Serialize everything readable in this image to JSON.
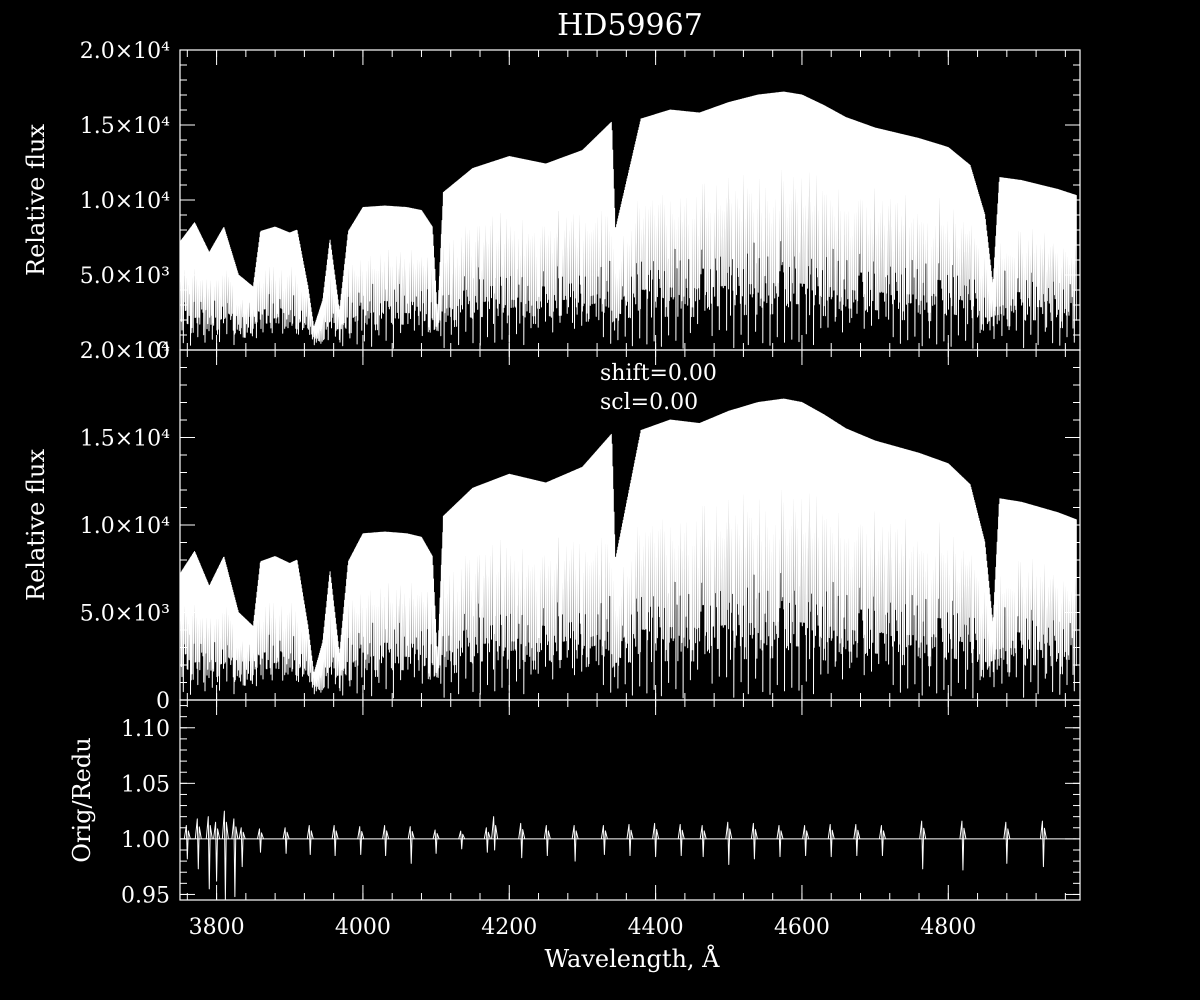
{
  "chart_data": {
    "type": "line",
    "title": "HD59967",
    "xlabel": "Wavelength, Å",
    "xlim": [
      3750,
      4980
    ],
    "x_ticks": [
      3800,
      4000,
      4200,
      4400,
      4600,
      4800
    ],
    "x_tick_labels": [
      "3800",
      "4000",
      "4200",
      "4400",
      "4600",
      "4800"
    ],
    "grid": false,
    "panels": [
      {
        "id": "original",
        "ylabel": "Relative flux",
        "ylim": [
          0,
          20000
        ],
        "y_ticks": [
          0,
          5000,
          10000,
          15000,
          20000
        ],
        "y_tick_labels": [
          "0",
          "5.0×10³",
          "1.0×10⁴",
          "1.5×10⁴",
          "2.0×10⁴"
        ],
        "annotations": [],
        "series": [
          {
            "continuum": {
              "x": [
                3750,
                3770,
                3790,
                3810,
                3830,
                3850,
                3860,
                3880,
                3900,
                3910,
                3925,
                3933,
                3945,
                3955,
                3968,
                3980,
                4000,
                4030,
                4060,
                4080,
                4095,
                4102,
                4110,
                4150,
                4200,
                4250,
                4300,
                4340,
                4345,
                4380,
                4420,
                4460,
                4500,
                4540,
                4575,
                4600,
                4630,
                4660,
                4700,
                4760,
                4800,
                4830,
                4850,
                4861,
                4870,
                4900,
                4950,
                4975
              ],
              "y": [
                7200,
                8500,
                6500,
                8200,
                5000,
                4200,
                7900,
                8200,
                7800,
                8000,
                4200,
                1500,
                3300,
                7400,
                2600,
                7900,
                9500,
                9600,
                9500,
                9300,
                8200,
                2200,
                10500,
                12100,
                12900,
                12400,
                13300,
                15200,
                8000,
                15400,
                16000,
                15800,
                16500,
                17000,
                17200,
                17000,
                16300,
                15500,
                14800,
                14100,
                13500,
                12300,
                9000,
                4300,
                11500,
                11300,
                10700,
                10300
              ]
            },
            "floor_samples": [
              1500,
              400,
              900,
              2200,
              300,
              1200,
              3000,
              700,
              2400,
              1800,
              4100,
              600,
              2600,
              3700,
              1100,
              2900,
              800,
              4600,
              2000,
              3400,
              1400,
              5200,
              2500,
              900,
              3800,
              1700,
              4400,
              2200,
              6100,
              1000,
              3300,
              2700,
              5600,
              1600,
              3100,
              4800,
              2300,
              6600,
              1300,
              3600
            ]
          }
        ]
      },
      {
        "id": "reduced",
        "ylabel": "Relative flux",
        "ylim": [
          0,
          20000
        ],
        "y_ticks": [
          0,
          5000,
          10000,
          15000,
          20000
        ],
        "y_tick_labels": [
          "0",
          "5.0×10³",
          "1.0×10⁴",
          "1.5×10⁴",
          "2.0×10⁴"
        ],
        "annotations": [
          "shift=0.00",
          "scl=0.00"
        ],
        "series": [
          {
            "continuum": {
              "x": [
                3750,
                3770,
                3790,
                3810,
                3830,
                3850,
                3860,
                3880,
                3900,
                3910,
                3925,
                3933,
                3945,
                3955,
                3968,
                3980,
                4000,
                4030,
                4060,
                4080,
                4095,
                4102,
                4110,
                4150,
                4200,
                4250,
                4300,
                4340,
                4345,
                4380,
                4420,
                4460,
                4500,
                4540,
                4575,
                4600,
                4630,
                4660,
                4700,
                4760,
                4800,
                4830,
                4850,
                4861,
                4870,
                4900,
                4950,
                4975
              ],
              "y": [
                7200,
                8500,
                6500,
                8200,
                5000,
                4200,
                7900,
                8200,
                7800,
                8000,
                4200,
                1500,
                3300,
                7400,
                2600,
                7900,
                9500,
                9600,
                9500,
                9300,
                8200,
                2200,
                10500,
                12100,
                12900,
                12400,
                13300,
                15200,
                8000,
                15400,
                16000,
                15800,
                16500,
                17000,
                17200,
                17000,
                16300,
                15500,
                14800,
                14100,
                13500,
                12300,
                9000,
                4300,
                11500,
                11300,
                10700,
                10300
              ]
            },
            "floor_samples": [
              1500,
              400,
              900,
              2200,
              300,
              1200,
              3000,
              700,
              2400,
              1800,
              4100,
              600,
              2600,
              3700,
              1100,
              2900,
              800,
              4600,
              2000,
              3400,
              1400,
              5200,
              2500,
              900,
              3800,
              1700,
              4400,
              2200,
              6100,
              1000,
              3300,
              2700,
              5600,
              1600,
              3100,
              4800,
              2300,
              6600,
              1300,
              3600
            ]
          }
        ]
      },
      {
        "id": "ratio",
        "ylabel": "Orig/Redu",
        "ylim": [
          0.945,
          1.125
        ],
        "y_ticks": [
          0.95,
          1.0,
          1.05,
          1.1
        ],
        "y_tick_labels": [
          "0.95",
          "1.00",
          "1.05",
          "1.10"
        ],
        "annotations": [],
        "series": [
          {
            "baseline": 1.0,
            "spikes": [
              {
                "x": 3760,
                "up": 1.012,
                "down": 0.982
              },
              {
                "x": 3775,
                "up": 1.018,
                "down": 0.973
              },
              {
                "x": 3790,
                "up": 1.02,
                "down": 0.955
              },
              {
                "x": 3800,
                "up": 1.015,
                "down": 0.962
              },
              {
                "x": 3812,
                "up": 1.025,
                "down": 0.945
              },
              {
                "x": 3825,
                "up": 1.018,
                "down": 0.948
              },
              {
                "x": 3835,
                "up": 1.01,
                "down": 0.975
              },
              {
                "x": 3860,
                "up": 1.009,
                "down": 0.988
              },
              {
                "x": 3895,
                "up": 1.01,
                "down": 0.987
              },
              {
                "x": 3928,
                "up": 1.012,
                "down": 0.986
              },
              {
                "x": 3962,
                "up": 1.012,
                "down": 0.985
              },
              {
                "x": 3997,
                "up": 1.011,
                "down": 0.986
              },
              {
                "x": 4031,
                "up": 1.012,
                "down": 0.985
              },
              {
                "x": 4066,
                "up": 1.011,
                "down": 0.978
              },
              {
                "x": 4100,
                "up": 1.008,
                "down": 0.987
              },
              {
                "x": 4135,
                "up": 1.007,
                "down": 0.991
              },
              {
                "x": 4170,
                "up": 1.01,
                "down": 0.988
              },
              {
                "x": 4180,
                "up": 1.02,
                "down": 0.99
              },
              {
                "x": 4217,
                "up": 1.014,
                "down": 0.983
              },
              {
                "x": 4252,
                "up": 1.012,
                "down": 0.985
              },
              {
                "x": 4290,
                "up": 1.012,
                "down": 0.98
              },
              {
                "x": 4330,
                "up": 1.012,
                "down": 0.986
              },
              {
                "x": 4365,
                "up": 1.013,
                "down": 0.985
              },
              {
                "x": 4400,
                "up": 1.014,
                "down": 0.984
              },
              {
                "x": 4435,
                "up": 1.013,
                "down": 0.985
              },
              {
                "x": 4465,
                "up": 1.012,
                "down": 0.984
              },
              {
                "x": 4500,
                "up": 1.015,
                "down": 0.977
              },
              {
                "x": 4535,
                "up": 1.014,
                "down": 0.982
              },
              {
                "x": 4570,
                "up": 1.012,
                "down": 0.984
              },
              {
                "x": 4605,
                "up": 1.012,
                "down": 0.985
              },
              {
                "x": 4640,
                "up": 1.013,
                "down": 0.984
              },
              {
                "x": 4675,
                "up": 1.013,
                "down": 0.985
              },
              {
                "x": 4710,
                "up": 1.012,
                "down": 0.985
              },
              {
                "x": 4765,
                "up": 1.016,
                "down": 0.973
              },
              {
                "x": 4820,
                "up": 1.016,
                "down": 0.972
              },
              {
                "x": 4880,
                "up": 1.015,
                "down": 0.978
              },
              {
                "x": 4930,
                "up": 1.016,
                "down": 0.975
              }
            ]
          }
        ]
      }
    ]
  }
}
